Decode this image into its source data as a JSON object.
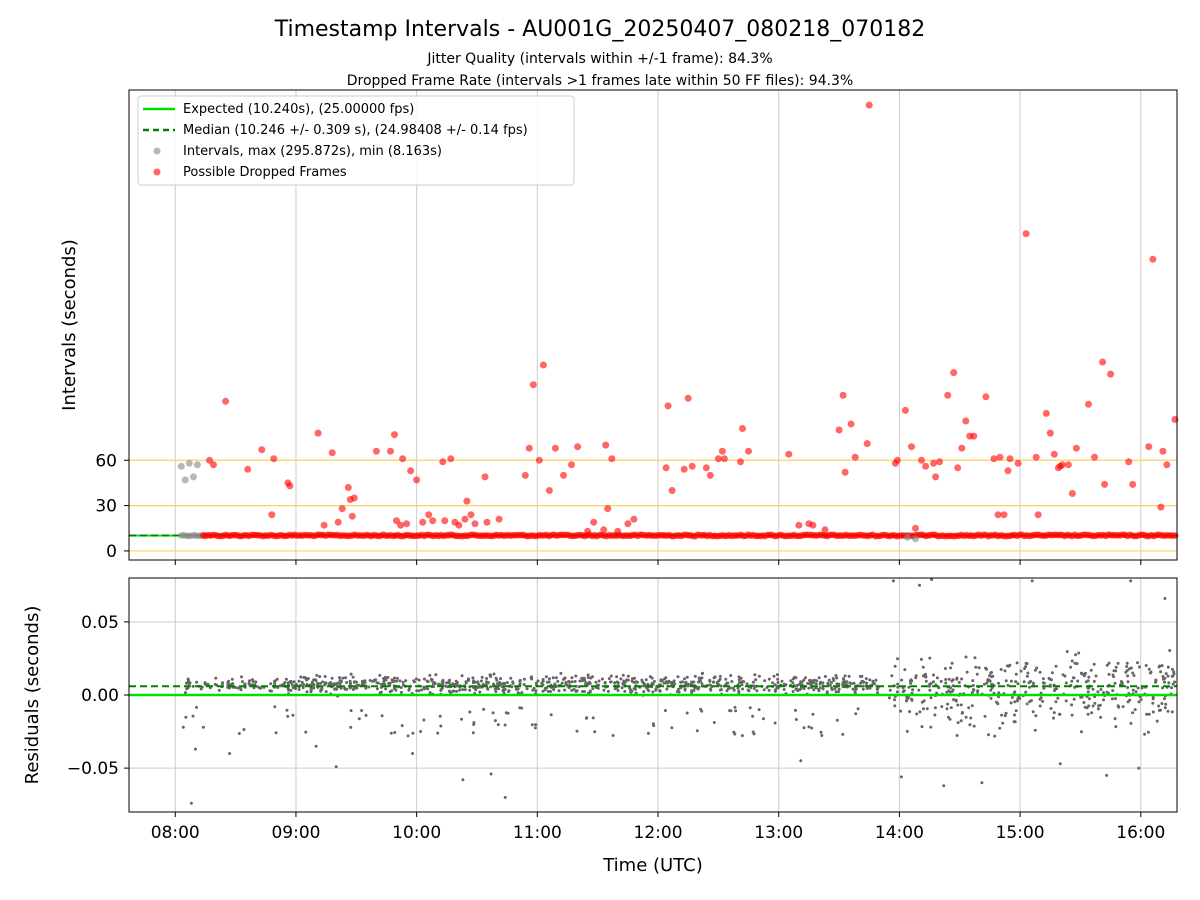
{
  "title": "Timestamp Intervals - AU001G_20250407_080218_070182",
  "subtitle_1": "Jitter Quality (intervals within +/-1 frame): 84.3%",
  "subtitle_2": "Dropped Frame Rate (intervals >1 frames late within 50 FF files): 94.3%",
  "colors": {
    "expected": "#00e000",
    "median": "#008000",
    "intervals": "#888888",
    "dropped": "#ff0000",
    "reference_lines": "#ffd060",
    "grid": "#cccccc"
  },
  "chart_data": [
    {
      "type": "scatter",
      "ylabel": "Intervals (seconds)",
      "yticks": [
        "0",
        "30",
        "60"
      ],
      "ylim": [
        -6,
        305
      ],
      "xlim": [
        "07:37",
        "16:18"
      ],
      "grid": "vertical",
      "reference_lines": [
        0,
        30,
        60
      ],
      "legend_position": "top-left",
      "legend": [
        "Expected (10.240s), (25.00000 fps)",
        "Median (10.246 +/- 0.309 s), (24.98408 +/- 0.14 fps)",
        "Intervals, max (295.872s), min (8.163s)",
        "Possible Dropped Frames"
      ],
      "series": [
        {
          "name": "Expected (10.240s), (25.00000 fps)",
          "kind": "hline",
          "y": 10.24
        },
        {
          "name": "Median (10.246 +/- 0.309 s), (24.98408 +/- 0.14 fps)",
          "kind": "hline-dashed",
          "y": 10.246
        },
        {
          "name": "Intervals, max (295.872s), min (8.163s)",
          "kind": "points",
          "points": [
            [
              "08:03",
              56
            ],
            [
              "08:05",
              47
            ],
            [
              "08:07",
              58
            ],
            [
              "08:09",
              49
            ],
            [
              "08:11",
              57
            ],
            [
              "14:04",
              9
            ],
            [
              "14:08",
              8
            ]
          ]
        },
        {
          "name": "Possible Dropped Frames",
          "kind": "points",
          "points": [
            [
              "08:17",
              60
            ],
            [
              "08:19",
              57
            ],
            [
              "08:25",
              99
            ],
            [
              "08:36",
              54
            ],
            [
              "08:43",
              67
            ],
            [
              "08:48",
              24
            ],
            [
              "08:49",
              61
            ],
            [
              "08:56",
              45
            ],
            [
              "08:57",
              43
            ],
            [
              "09:11",
              78
            ],
            [
              "09:14",
              17
            ],
            [
              "09:18",
              65
            ],
            [
              "09:21",
              19
            ],
            [
              "09:23",
              28
            ],
            [
              "09:26",
              42
            ],
            [
              "09:27",
              34
            ],
            [
              "09:28",
              23
            ],
            [
              "09:29",
              35
            ],
            [
              "09:40",
              66
            ],
            [
              "09:47",
              66
            ],
            [
              "09:49",
              77
            ],
            [
              "09:50",
              20
            ],
            [
              "09:52",
              17
            ],
            [
              "09:53",
              61
            ],
            [
              "09:55",
              18
            ],
            [
              "09:57",
              53
            ],
            [
              "10:00",
              47
            ],
            [
              "10:03",
              19
            ],
            [
              "10:06",
              24
            ],
            [
              "10:08",
              20
            ],
            [
              "10:13",
              59
            ],
            [
              "10:14",
              20
            ],
            [
              "10:17",
              61
            ],
            [
              "10:19",
              19
            ],
            [
              "10:21",
              17
            ],
            [
              "10:24",
              21
            ],
            [
              "10:25",
              33
            ],
            [
              "10:27",
              24
            ],
            [
              "10:29",
              18
            ],
            [
              "10:34",
              49
            ],
            [
              "10:35",
              19
            ],
            [
              "10:41",
              21
            ],
            [
              "10:54",
              50
            ],
            [
              "10:56",
              68
            ],
            [
              "10:58",
              110
            ],
            [
              "11:01",
              60
            ],
            [
              "11:03",
              123
            ],
            [
              "11:06",
              40
            ],
            [
              "11:09",
              68
            ],
            [
              "11:13",
              50
            ],
            [
              "11:17",
              57
            ],
            [
              "11:20",
              69
            ],
            [
              "11:25",
              13
            ],
            [
              "11:28",
              19
            ],
            [
              "11:33",
              14
            ],
            [
              "11:34",
              70
            ],
            [
              "11:35",
              28
            ],
            [
              "11:37",
              61
            ],
            [
              "11:40",
              13
            ],
            [
              "11:45",
              18
            ],
            [
              "11:48",
              21
            ],
            [
              "12:04",
              55
            ],
            [
              "12:05",
              96
            ],
            [
              "12:07",
              40
            ],
            [
              "12:13",
              54
            ],
            [
              "12:15",
              101
            ],
            [
              "12:17",
              56
            ],
            [
              "12:24",
              55
            ],
            [
              "12:26",
              50
            ],
            [
              "12:30",
              61
            ],
            [
              "12:32",
              66
            ],
            [
              "12:33",
              61
            ],
            [
              "12:41",
              59
            ],
            [
              "12:42",
              81
            ],
            [
              "12:45",
              66
            ],
            [
              "13:05",
              64
            ],
            [
              "13:10",
              17
            ],
            [
              "13:15",
              18
            ],
            [
              "13:17",
              17
            ],
            [
              "13:23",
              14
            ],
            [
              "13:30",
              80
            ],
            [
              "13:32",
              103
            ],
            [
              "13:33",
              52
            ],
            [
              "13:36",
              84
            ],
            [
              "13:38",
              62
            ],
            [
              "13:44",
              71
            ],
            [
              "13:45",
              295
            ],
            [
              "13:58",
              58
            ],
            [
              "13:59",
              60
            ],
            [
              "14:03",
              93
            ],
            [
              "14:06",
              69
            ],
            [
              "14:08",
              15
            ],
            [
              "14:11",
              60
            ],
            [
              "14:13",
              56
            ],
            [
              "14:17",
              58
            ],
            [
              "14:18",
              49
            ],
            [
              "14:20",
              59
            ],
            [
              "14:24",
              103
            ],
            [
              "14:27",
              118
            ],
            [
              "14:29",
              55
            ],
            [
              "14:31",
              68
            ],
            [
              "14:33",
              86
            ],
            [
              "14:35",
              76
            ],
            [
              "14:37",
              76
            ],
            [
              "14:43",
              102
            ],
            [
              "14:47",
              61
            ],
            [
              "14:49",
              24
            ],
            [
              "14:50",
              62
            ],
            [
              "14:52",
              24
            ],
            [
              "14:54",
              53
            ],
            [
              "14:55",
              61
            ],
            [
              "14:59",
              58
            ],
            [
              "15:03",
              210
            ],
            [
              "15:08",
              62
            ],
            [
              "15:09",
              24
            ],
            [
              "15:13",
              91
            ],
            [
              "15:15",
              78
            ],
            [
              "15:17",
              64
            ],
            [
              "15:19",
              55
            ],
            [
              "15:20",
              56
            ],
            [
              "15:21",
              57
            ],
            [
              "15:24",
              57
            ],
            [
              "15:26",
              38
            ],
            [
              "15:28",
              68
            ],
            [
              "15:34",
              97
            ],
            [
              "15:37",
              62
            ],
            [
              "15:41",
              125
            ],
            [
              "15:42",
              44
            ],
            [
              "15:45",
              117
            ],
            [
              "15:54",
              59
            ],
            [
              "15:56",
              44
            ],
            [
              "16:04",
              69
            ],
            [
              "16:06",
              193
            ],
            [
              "16:10",
              29
            ],
            [
              "16:11",
              66
            ],
            [
              "16:13",
              57
            ],
            [
              "16:17",
              87
            ]
          ]
        }
      ]
    },
    {
      "type": "scatter",
      "xlabel": "Time (UTC)",
      "ylabel": "Residuals (seconds)",
      "yticks": [
        "−0.05",
        "0.00",
        "0.05"
      ],
      "xticks": [
        "08:00",
        "09:00",
        "10:00",
        "11:00",
        "12:00",
        "13:00",
        "14:00",
        "15:00",
        "16:00"
      ],
      "ylim": [
        -0.08,
        0.08
      ],
      "xlim": [
        "07:37",
        "16:18"
      ],
      "grid": "both",
      "series": [
        {
          "name": "Expected (10.240s), (25.00000 fps)",
          "kind": "hline",
          "y": 0.0
        },
        {
          "name": "Median (10.246 +/- 0.309 s), (24.98408 +/- 0.14 fps)",
          "kind": "hline-dashed",
          "y": 0.006
        },
        {
          "name": "Intervals, max (295.872s), min (8.163s)",
          "kind": "points",
          "note_distribution": [
            {
              "from": "08:05",
              "to": "08:55",
              "center": 0.007,
              "spread": 0.006,
              "count": 90
            },
            {
              "from": "08:55",
              "to": "13:50",
              "center": 0.007,
              "spread": 0.009,
              "count": 900
            },
            {
              "from": "13:55",
              "to": "16:18",
              "center": 0.006,
              "spread": 0.03,
              "count": 420
            }
          ],
          "outliers": [
            [
              "08:04",
              -0.022
            ],
            [
              "08:08",
              -0.074
            ],
            [
              "08:10",
              -0.037
            ],
            [
              "08:14",
              -0.022
            ],
            [
              "08:27",
              -0.04
            ],
            [
              "09:10",
              -0.035
            ],
            [
              "09:20",
              -0.049
            ],
            [
              "09:58",
              -0.04
            ],
            [
              "10:23",
              -0.058
            ],
            [
              "10:37",
              -0.054
            ],
            [
              "10:44",
              -0.07
            ],
            [
              "13:11",
              -0.045
            ],
            [
              "14:01",
              -0.056
            ],
            [
              "14:22",
              -0.062
            ],
            [
              "14:41",
              -0.06
            ],
            [
              "15:20",
              -0.047
            ],
            [
              "15:43",
              -0.055
            ],
            [
              "15:59",
              -0.05
            ],
            [
              "13:57",
              0.078
            ],
            [
              "14:10",
              0.075
            ],
            [
              "14:16",
              0.079
            ],
            [
              "15:06",
              0.078
            ],
            [
              "15:55",
              0.078
            ],
            [
              "16:12",
              0.066
            ]
          ]
        }
      ]
    }
  ]
}
